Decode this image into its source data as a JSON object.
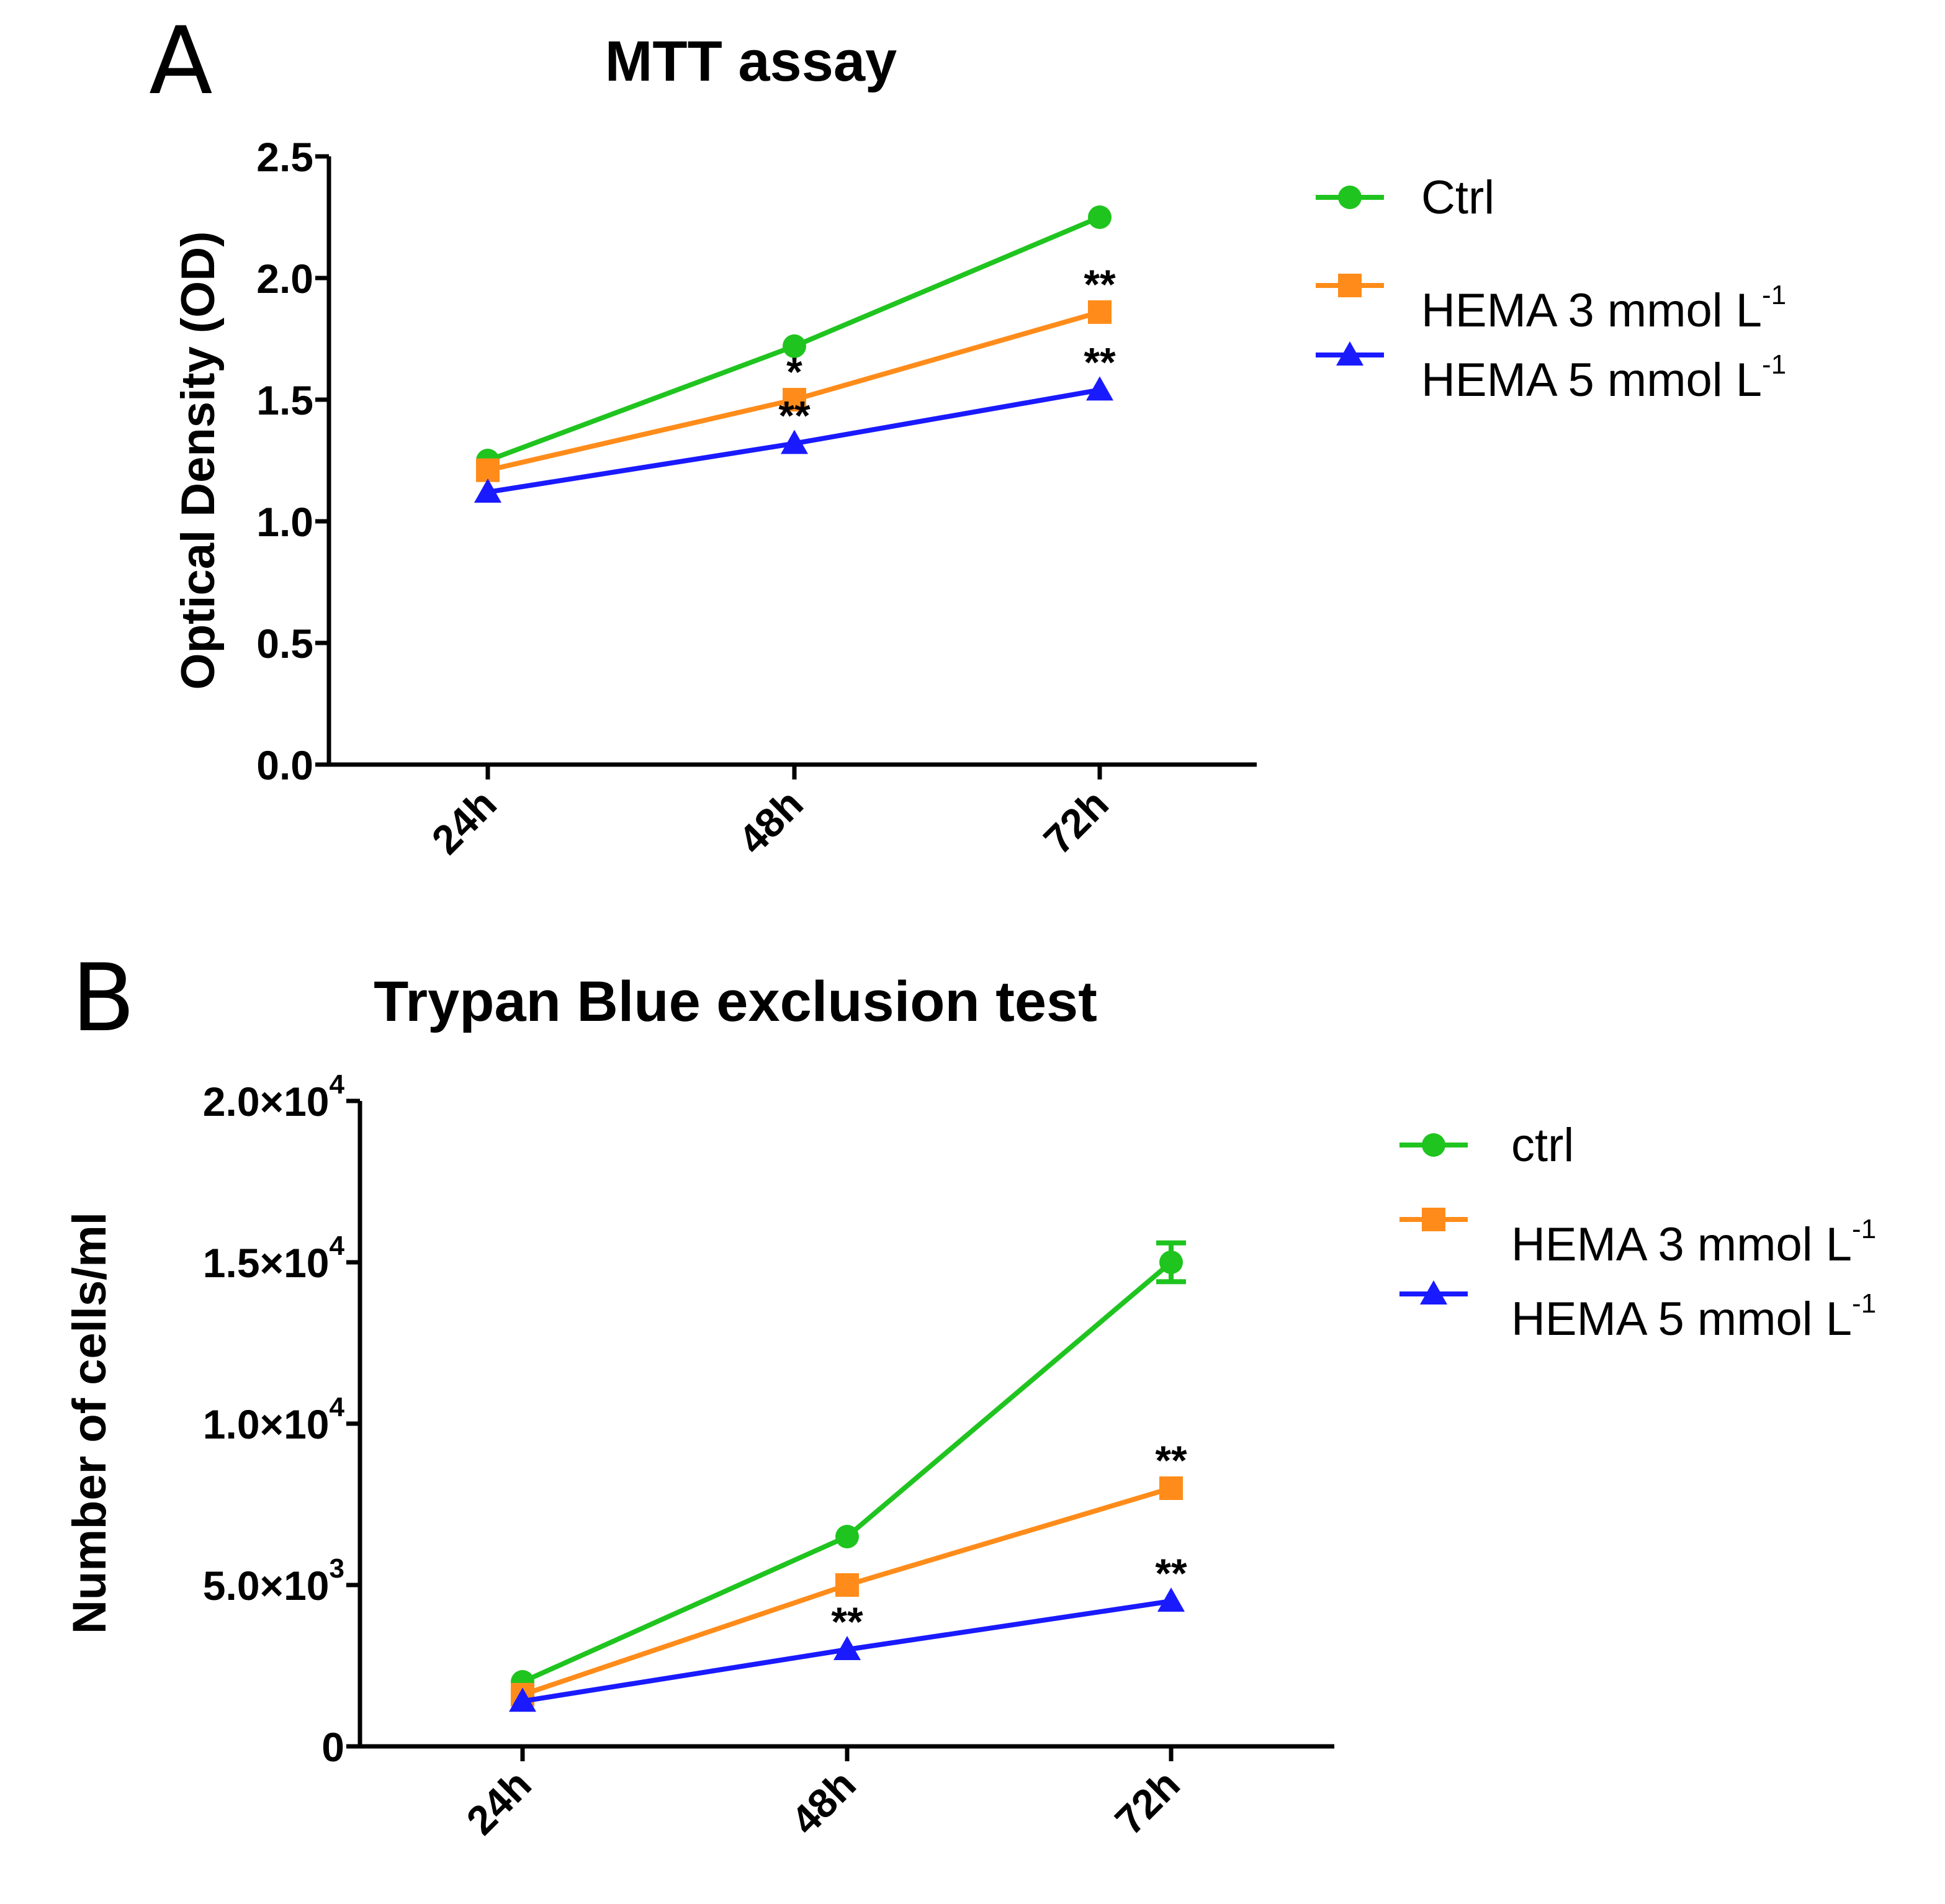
{
  "chart_data": [
    {
      "type": "line",
      "panel_label": "A",
      "title": "MTT assay",
      "xlabel": "",
      "ylabel": "Optical Density (OD)",
      "categories": [
        "24h",
        "48h",
        "72h"
      ],
      "ylim": [
        0,
        2.5
      ],
      "yticks": [
        0.0,
        0.5,
        1.0,
        1.5,
        2.0,
        2.5
      ],
      "ytick_labels": [
        {
          "base": "0.0",
          "sup": ""
        },
        {
          "base": "0.5",
          "sup": ""
        },
        {
          "base": "1.0",
          "sup": ""
        },
        {
          "base": "1.5",
          "sup": ""
        },
        {
          "base": "2.0",
          "sup": ""
        },
        {
          "base": "2.5",
          "sup": ""
        }
      ],
      "series": [
        {
          "name": "Ctrl",
          "legend_base": "Ctrl",
          "legend_sup": "",
          "color": "#1fc41f",
          "marker": "circle",
          "values": [
            1.25,
            1.72,
            2.25
          ],
          "errors": [
            0,
            0,
            0
          ]
        },
        {
          "name": "HEMA 3 mmol L-1",
          "legend_base": "HEMA 3 mmol L",
          "legend_sup": "-1",
          "color": "#ff8c1a",
          "marker": "square",
          "values": [
            1.21,
            1.5,
            1.86
          ],
          "errors": [
            0,
            0,
            0
          ]
        },
        {
          "name": "HEMA 5 mmol L-1",
          "legend_base": "HEMA 5 mmol L",
          "legend_sup": "-1",
          "color": "#1a1aff",
          "marker": "triangle",
          "values": [
            1.12,
            1.32,
            1.54
          ],
          "errors": [
            0,
            0,
            0
          ]
        }
      ],
      "annotations": [
        {
          "text": "*",
          "category": "48h",
          "series": "HEMA 3 mmol L-1",
          "position": "above"
        },
        {
          "text": "**",
          "category": "48h",
          "series": "HEMA 5 mmol L-1",
          "position": "above"
        },
        {
          "text": "**",
          "category": "72h",
          "series": "HEMA 3 mmol L-1",
          "position": "above"
        },
        {
          "text": "**",
          "category": "72h",
          "series": "HEMA 5 mmol L-1",
          "position": "above"
        }
      ],
      "legend_position": "right"
    },
    {
      "type": "line",
      "panel_label": "B",
      "title": "Trypan Blue exclusion test",
      "xlabel": "",
      "ylabel": "Number of cells/ml",
      "categories": [
        "24h",
        "48h",
        "72h"
      ],
      "ylim": [
        0,
        20000
      ],
      "yticks": [
        0,
        5000,
        10000,
        15000,
        20000
      ],
      "ytick_labels": [
        {
          "base": "0",
          "sup": ""
        },
        {
          "base": "5.0×10",
          "sup": "3"
        },
        {
          "base": "1.0×10",
          "sup": "4"
        },
        {
          "base": "1.5×10",
          "sup": "4"
        },
        {
          "base": "2.0×10",
          "sup": "4"
        }
      ],
      "series": [
        {
          "name": "ctrl",
          "legend_base": "ctrl",
          "legend_sup": "",
          "color": "#1fc41f",
          "marker": "circle",
          "values": [
            2000,
            6500,
            15000
          ],
          "errors": [
            0,
            0,
            600
          ]
        },
        {
          "name": "HEMA 3 mmol L-1",
          "legend_base": "HEMA 3 mmol L",
          "legend_sup": "-1",
          "color": "#ff8c1a",
          "marker": "square",
          "values": [
            1600,
            5000,
            8000
          ],
          "errors": [
            0,
            0,
            0
          ]
        },
        {
          "name": "HEMA 5 mmol L-1",
          "legend_base": "HEMA 5 mmol L",
          "legend_sup": "-1",
          "color": "#1a1aff",
          "marker": "triangle",
          "values": [
            1400,
            3000,
            4500
          ],
          "errors": [
            0,
            0,
            0
          ]
        }
      ],
      "annotations": [
        {
          "text": "**",
          "category": "48h",
          "series": "HEMA 5 mmol L-1",
          "position": "above"
        },
        {
          "text": "**",
          "category": "72h",
          "series": "HEMA 3 mmol L-1",
          "position": "above"
        },
        {
          "text": "**",
          "category": "72h",
          "series": "HEMA 5 mmol L-1",
          "position": "above"
        }
      ],
      "legend_position": "right"
    }
  ]
}
